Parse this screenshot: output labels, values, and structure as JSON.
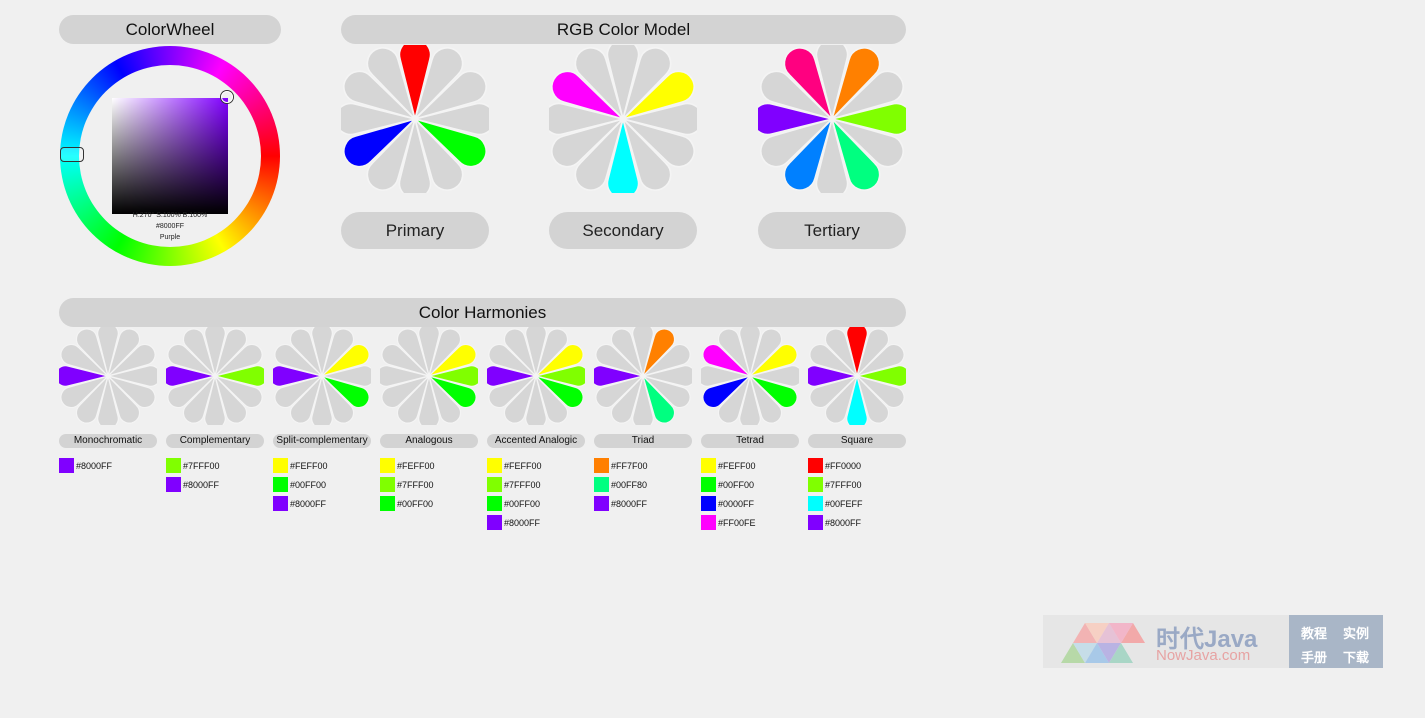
{
  "colorwheel": {
    "title": "ColorWheel",
    "hsb_readout": "H:270° S:100% B:100%",
    "hex": "#8000FF",
    "name": "Purple",
    "hue_degrees": 270,
    "saturation": 1.0,
    "brightness": 1.0,
    "selected_color": "#8000ff"
  },
  "rgb_model": {
    "title": "RGB Color Model",
    "flowers": [
      {
        "label": "Primary",
        "colors": {
          "0": "#ff0000",
          "4": "#00ff00",
          "8": "#0000ff"
        }
      },
      {
        "label": "Secondary",
        "colors": {
          "2": "#ffff00",
          "6": "#00ffff",
          "10": "#ff00ff"
        }
      },
      {
        "label": "Tertiary",
        "colors": {
          "1": "#ff8000",
          "3": "#80ff00",
          "5": "#00ff80",
          "7": "#0080ff",
          "9": "#8000ff",
          "11": "#ff0080"
        }
      }
    ]
  },
  "harmonies": {
    "title": "Color Harmonies",
    "items": [
      {
        "label": "Monochromatic",
        "colors": {
          "9": "#8000ff"
        },
        "swatches": [
          {
            "color": "#8000ff",
            "hex": "#8000FF"
          }
        ]
      },
      {
        "label": "Complementary",
        "colors": {
          "3": "#80ff00",
          "9": "#8000ff"
        },
        "swatches": [
          {
            "color": "#80ff00",
            "hex": "#7FFF00"
          },
          {
            "color": "#8000ff",
            "hex": "#8000FF"
          }
        ]
      },
      {
        "label": "Split-complementary",
        "colors": {
          "2": "#ffff00",
          "4": "#00ff00",
          "9": "#8000ff"
        },
        "swatches": [
          {
            "color": "#ffff00",
            "hex": "#FEFF00"
          },
          {
            "color": "#00ff00",
            "hex": "#00FF00"
          },
          {
            "color": "#8000ff",
            "hex": "#8000FF"
          }
        ]
      },
      {
        "label": "Analogous",
        "colors": {
          "2": "#ffff00",
          "3": "#80ff00",
          "4": "#00ff00"
        },
        "swatches": [
          {
            "color": "#ffff00",
            "hex": "#FEFF00"
          },
          {
            "color": "#80ff00",
            "hex": "#7FFF00"
          },
          {
            "color": "#00ff00",
            "hex": "#00FF00"
          }
        ]
      },
      {
        "label": "Accented Analogic",
        "colors": {
          "2": "#ffff00",
          "3": "#80ff00",
          "4": "#00ff00",
          "9": "#8000ff"
        },
        "swatches": [
          {
            "color": "#ffff00",
            "hex": "#FEFF00"
          },
          {
            "color": "#80ff00",
            "hex": "#7FFF00"
          },
          {
            "color": "#00ff00",
            "hex": "#00FF00"
          },
          {
            "color": "#8000ff",
            "hex": "#8000FF"
          }
        ]
      },
      {
        "label": "Triad",
        "colors": {
          "1": "#ff8000",
          "5": "#00ff80",
          "9": "#8000ff"
        },
        "swatches": [
          {
            "color": "#ff7f00",
            "hex": "#FF7F00"
          },
          {
            "color": "#00ff80",
            "hex": "#00FF80"
          },
          {
            "color": "#8000ff",
            "hex": "#8000FF"
          }
        ]
      },
      {
        "label": "Tetrad",
        "colors": {
          "2": "#ffff00",
          "4": "#00ff00",
          "8": "#0000ff",
          "10": "#ff00ff"
        },
        "swatches": [
          {
            "color": "#ffff00",
            "hex": "#FEFF00"
          },
          {
            "color": "#00ff00",
            "hex": "#00FF00"
          },
          {
            "color": "#0000ff",
            "hex": "#0000FF"
          },
          {
            "color": "#ff00fe",
            "hex": "#FF00FE"
          }
        ]
      },
      {
        "label": "Square",
        "colors": {
          "0": "#ff0000",
          "3": "#80ff00",
          "6": "#00ffff",
          "9": "#8000ff"
        },
        "swatches": [
          {
            "color": "#ff0000",
            "hex": "#FF0000"
          },
          {
            "color": "#80ff00",
            "hex": "#7FFF00"
          },
          {
            "color": "#00ffff",
            "hex": "#00FEFF"
          },
          {
            "color": "#8000ff",
            "hex": "#8000FF"
          }
        ]
      }
    ]
  },
  "watermark": {
    "brand_cn": "时代Java",
    "url": "NowJava.com",
    "links": [
      "教程",
      "实例",
      "手册",
      "下载"
    ]
  }
}
